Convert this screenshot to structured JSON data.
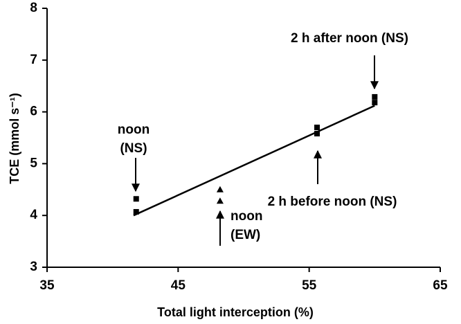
{
  "chart_data": {
    "type": "scatter",
    "xlabel": "Total light interception (%)",
    "ylabel": "TCE (mmol s⁻¹)",
    "xlim": [
      35,
      65
    ],
    "xticks": [
      35,
      45,
      55,
      65
    ],
    "ylim": [
      3,
      8
    ],
    "yticks": [
      3,
      4,
      5,
      6,
      7,
      8
    ],
    "color": "#000000",
    "series": [
      {
        "name": "NS",
        "marker": "square",
        "x": [
          41.8,
          41.8,
          55.6,
          55.6,
          60.0,
          60.0
        ],
        "values": [
          4.32,
          4.07,
          5.7,
          5.58,
          6.29,
          6.18
        ]
      },
      {
        "name": "EW",
        "marker": "triangle",
        "x": [
          48.2,
          48.2
        ],
        "values": [
          4.5,
          4.28
        ]
      }
    ],
    "fit_line": {
      "x": [
        41.6,
        60.0
      ],
      "values": [
        4.0,
        6.12
      ]
    },
    "annotations": [
      {
        "lines": [
          "noon",
          "(NS)"
        ]
      },
      {
        "lines": [
          "2 h after noon (NS)"
        ]
      },
      {
        "lines": [
          "2 h before noon (NS)"
        ]
      },
      {
        "lines": [
          "noon",
          "(EW)"
        ]
      }
    ]
  }
}
